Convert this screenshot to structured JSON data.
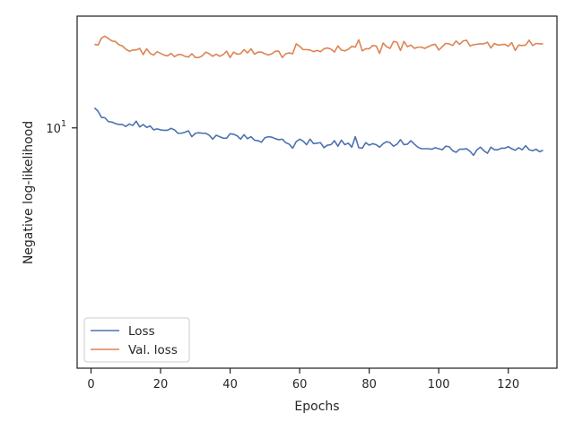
{
  "chart_data": {
    "type": "line",
    "xlabel": "Epochs",
    "ylabel": "Negative log-likelihood",
    "xlim": [
      -4,
      134
    ],
    "ylim_log10": [
      0.785,
      1.1
    ],
    "y_scale": "log",
    "grid": false,
    "legend_position": "lower-left",
    "x_ticks": [
      0,
      20,
      40,
      60,
      80,
      100,
      120
    ],
    "y_ticks": [
      {
        "value": 10,
        "base": "10",
        "exponent": "1"
      }
    ],
    "series": [
      {
        "name": "Loss",
        "color": "#4c72b0",
        "x": [
          1,
          2,
          3,
          4,
          5,
          6,
          7,
          8,
          9,
          10,
          11,
          12,
          13,
          14,
          15,
          16,
          17,
          18,
          19,
          20,
          21,
          22,
          23,
          24,
          25,
          26,
          27,
          28,
          29,
          30,
          31,
          32,
          33,
          34,
          35,
          36,
          37,
          38,
          39,
          40,
          41,
          42,
          43,
          44,
          45,
          46,
          47,
          48,
          49,
          50,
          51,
          52,
          53,
          54,
          55,
          56,
          57,
          58,
          59,
          60,
          61,
          62,
          63,
          64,
          65,
          66,
          67,
          68,
          69,
          70,
          71,
          72,
          73,
          74,
          75,
          76,
          77,
          78,
          79,
          80,
          81,
          82,
          83,
          84,
          85,
          86,
          87,
          88,
          89,
          90,
          91,
          92,
          93,
          94,
          95,
          96,
          97,
          98,
          99,
          100,
          101,
          102,
          103,
          104,
          105,
          106,
          107,
          108,
          109,
          110,
          111,
          112,
          113,
          114,
          115,
          116,
          117,
          118,
          119,
          120,
          121,
          122,
          123,
          124,
          125,
          126,
          127,
          128,
          129,
          130
        ],
        "values": [
          10.42,
          10.35,
          10.22,
          10.21,
          10.13,
          10.12,
          10.09,
          10.07,
          10.07,
          10.03,
          10.08,
          10.05,
          10.14,
          10.02,
          10.07,
          10.01,
          10.04,
          9.96,
          9.98,
          9.96,
          9.95,
          9.95,
          9.99,
          9.96,
          9.89,
          9.89,
          9.91,
          9.94,
          9.82,
          9.89,
          9.9,
          9.89,
          9.89,
          9.85,
          9.77,
          9.85,
          9.82,
          9.79,
          9.79,
          9.88,
          9.87,
          9.84,
          9.77,
          9.86,
          9.78,
          9.82,
          9.75,
          9.74,
          9.71,
          9.8,
          9.82,
          9.81,
          9.78,
          9.76,
          9.77,
          9.7,
          9.67,
          9.59,
          9.72,
          9.77,
          9.73,
          9.66,
          9.77,
          9.68,
          9.69,
          9.7,
          9.6,
          9.65,
          9.66,
          9.74,
          9.63,
          9.75,
          9.66,
          9.69,
          9.61,
          9.82,
          9.6,
          9.59,
          9.7,
          9.65,
          9.68,
          9.66,
          9.61,
          9.68,
          9.72,
          9.7,
          9.63,
          9.67,
          9.76,
          9.66,
          9.67,
          9.74,
          9.67,
          9.61,
          9.58,
          9.58,
          9.58,
          9.57,
          9.6,
          9.58,
          9.56,
          9.63,
          9.62,
          9.54,
          9.51,
          9.57,
          9.57,
          9.58,
          9.53,
          9.45,
          9.56,
          9.61,
          9.54,
          9.49,
          9.61,
          9.56,
          9.56,
          9.59,
          9.59,
          9.62,
          9.58,
          9.55,
          9.6,
          9.56,
          9.64,
          9.56,
          9.54,
          9.57,
          9.52,
          9.55
        ]
      },
      {
        "name": "Val. loss",
        "color": "#dd8452",
        "x": [
          1,
          2,
          3,
          4,
          5,
          6,
          7,
          8,
          9,
          10,
          11,
          12,
          13,
          14,
          15,
          16,
          17,
          18,
          19,
          20,
          21,
          22,
          23,
          24,
          25,
          26,
          27,
          28,
          29,
          30,
          31,
          32,
          33,
          34,
          35,
          36,
          37,
          38,
          39,
          40,
          41,
          42,
          43,
          44,
          45,
          46,
          47,
          48,
          49,
          50,
          51,
          52,
          53,
          54,
          55,
          56,
          57,
          58,
          59,
          60,
          61,
          62,
          63,
          64,
          65,
          66,
          67,
          68,
          69,
          70,
          71,
          72,
          73,
          74,
          75,
          76,
          77,
          78,
          79,
          80,
          81,
          82,
          83,
          84,
          85,
          86,
          87,
          88,
          89,
          90,
          91,
          92,
          93,
          94,
          95,
          96,
          97,
          98,
          99,
          100,
          101,
          102,
          103,
          104,
          105,
          106,
          107,
          108,
          109,
          110,
          111,
          112,
          113,
          114,
          115,
          116,
          117,
          118,
          119,
          120,
          121,
          122,
          123,
          124,
          125,
          126,
          127,
          128,
          129,
          130
        ],
        "values": [
          11.88,
          11.86,
          12.03,
          12.08,
          12.02,
          11.96,
          11.95,
          11.87,
          11.84,
          11.76,
          11.71,
          11.74,
          11.74,
          11.78,
          11.63,
          11.77,
          11.66,
          11.62,
          11.7,
          11.66,
          11.62,
          11.6,
          11.66,
          11.58,
          11.63,
          11.63,
          11.59,
          11.57,
          11.65,
          11.56,
          11.56,
          11.6,
          11.69,
          11.65,
          11.59,
          11.64,
          11.59,
          11.63,
          11.71,
          11.56,
          11.69,
          11.64,
          11.65,
          11.75,
          11.67,
          11.77,
          11.64,
          11.69,
          11.69,
          11.65,
          11.62,
          11.65,
          11.71,
          11.71,
          11.56,
          11.65,
          11.67,
          11.65,
          11.89,
          11.83,
          11.75,
          11.75,
          11.74,
          11.7,
          11.73,
          11.7,
          11.77,
          11.79,
          11.76,
          11.69,
          11.84,
          11.74,
          11.72,
          11.76,
          11.83,
          11.81,
          11.99,
          11.72,
          11.77,
          11.77,
          11.85,
          11.84,
          11.66,
          11.91,
          11.82,
          11.78,
          11.95,
          11.93,
          11.73,
          11.95,
          11.82,
          11.86,
          11.78,
          11.81,
          11.81,
          11.78,
          11.82,
          11.86,
          11.88,
          11.74,
          11.82,
          11.9,
          11.89,
          11.85,
          11.96,
          11.88,
          11.96,
          11.98,
          11.84,
          11.87,
          11.88,
          11.89,
          11.89,
          11.93,
          11.79,
          11.9,
          11.86,
          11.87,
          11.88,
          11.83,
          11.92,
          11.73,
          11.86,
          11.85,
          11.86,
          11.98,
          11.85,
          11.9,
          11.89,
          11.89
        ]
      }
    ]
  }
}
